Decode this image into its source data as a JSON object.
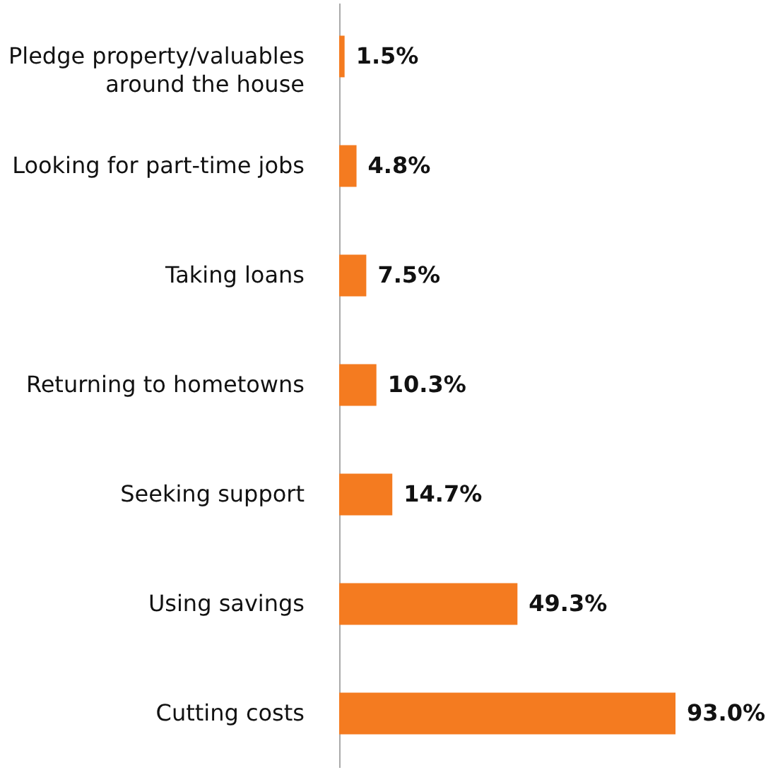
{
  "chart_data": {
    "type": "bar",
    "orientation": "horizontal",
    "categories": [
      "Pledge property/valuables\naround the house",
      "Looking for part-time jobs",
      "Taking loans",
      "Returning to hometowns",
      "Seeking support",
      "Using savings",
      "Cutting costs"
    ],
    "values": [
      1.5,
      4.8,
      7.5,
      10.3,
      14.7,
      49.3,
      93.0
    ],
    "value_labels": [
      "1.5%",
      "4.8%",
      "7.5%",
      "10.3%",
      "14.7%",
      "49.3%",
      "93.0%"
    ],
    "color": "#f47b20"
  }
}
